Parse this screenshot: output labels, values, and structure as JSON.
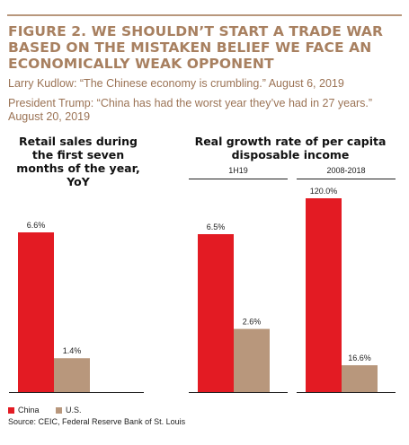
{
  "figure": {
    "title": "FIGURE 2.  WE SHOULDN’T START A TRADE WAR BASED ON THE MISTAKEN BELIEF WE FACE AN ECONOMICALLY WEAK OPPONENT",
    "quote1": "Larry Kudlow: “The Chinese economy is crumbling.” August 6, 2019",
    "quote2": "President Trump: “China has had the worst year they’ve had in 27 years.” August 20, 2019",
    "source": "Source: CEIC, Federal Reserve Bank of St. Louis"
  },
  "colors": {
    "china": "#e31b23",
    "us": "#b8977c",
    "title": "#a88060"
  },
  "chart_data": [
    {
      "type": "bar",
      "title": "Retail sales during the first seven months of the year, YoY",
      "categories": [
        "China",
        "U.S."
      ],
      "values": [
        6.6,
        1.4
      ],
      "labels": [
        "6.6%",
        "1.4%"
      ]
    },
    {
      "type": "bar",
      "title": "Real growth rate of per capita disposable income",
      "groups": [
        {
          "label": "1H19",
          "categories": [
            "China",
            "U.S."
          ],
          "values": [
            6.5,
            2.6
          ],
          "labels": [
            "6.5%",
            "2.6%"
          ]
        },
        {
          "label": "2008-2018",
          "categories": [
            "China",
            "U.S."
          ],
          "values": [
            120.0,
            16.6
          ],
          "labels": [
            "120.0%",
            "16.6%"
          ]
        }
      ]
    }
  ],
  "legend": [
    {
      "name": "China",
      "color": "#e31b23"
    },
    {
      "name": "U.S.",
      "color": "#b8977c"
    }
  ]
}
